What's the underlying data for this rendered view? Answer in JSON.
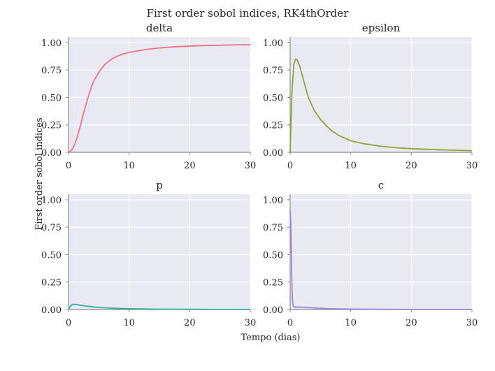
{
  "figure": {
    "title": "First order sobol indices, RK4thOrder",
    "xlabel": "Tempo (dias)",
    "ylabel": "First order sobol indices"
  },
  "colors": {
    "panel_bg": "#e9e9f1",
    "grid": "#ffffff",
    "axis": "#8c8c8c"
  },
  "chart_data": [
    {
      "type": "line",
      "title": "delta",
      "color": "#f07182",
      "xlim": [
        0,
        30
      ],
      "ylim": [
        0,
        1.05
      ],
      "xticks": [
        0,
        10,
        20,
        30
      ],
      "yticks": [
        0.0,
        0.25,
        0.5,
        0.75,
        1.0
      ],
      "grid": true,
      "x": [
        0,
        0.5,
        1,
        1.5,
        2,
        2.5,
        3,
        3.5,
        4,
        5,
        6,
        7,
        8,
        9,
        10,
        12,
        14,
        16,
        18,
        20,
        22,
        24,
        26,
        28,
        30
      ],
      "y": [
        0.0,
        0.02,
        0.07,
        0.15,
        0.25,
        0.36,
        0.46,
        0.55,
        0.63,
        0.73,
        0.8,
        0.845,
        0.875,
        0.895,
        0.91,
        0.93,
        0.945,
        0.955,
        0.962,
        0.967,
        0.971,
        0.974,
        0.977,
        0.979,
        0.98
      ]
    },
    {
      "type": "line",
      "title": "epsilon",
      "color": "#8fa43a",
      "xlim": [
        0,
        30
      ],
      "ylim": [
        0,
        1.05
      ],
      "xticks": [
        0,
        10,
        20,
        30
      ],
      "yticks": [
        0.0,
        0.25,
        0.5,
        0.75,
        1.0
      ],
      "grid": true,
      "x": [
        0,
        0.3,
        0.6,
        0.9,
        1.2,
        1.6,
        2,
        2.5,
        3,
        4,
        5,
        6,
        7,
        8,
        10,
        12,
        15,
        18,
        20,
        25,
        30
      ],
      "y": [
        0.0,
        0.55,
        0.8,
        0.85,
        0.84,
        0.78,
        0.7,
        0.6,
        0.5,
        0.38,
        0.3,
        0.24,
        0.19,
        0.155,
        0.105,
        0.08,
        0.055,
        0.04,
        0.033,
        0.022,
        0.015
      ]
    },
    {
      "type": "line",
      "title": "p",
      "color": "#33ae9a",
      "xlim": [
        0,
        30
      ],
      "ylim": [
        0,
        1.05
      ],
      "xticks": [
        0,
        10,
        20,
        30
      ],
      "yticks": [
        0.0,
        0.25,
        0.5,
        0.75,
        1.0
      ],
      "grid": true,
      "x": [
        0,
        0.3,
        0.6,
        1,
        1.5,
        2,
        3,
        4,
        5,
        6,
        8,
        10,
        12,
        15,
        20,
        25,
        30
      ],
      "y": [
        0.0,
        0.03,
        0.045,
        0.047,
        0.044,
        0.039,
        0.031,
        0.025,
        0.019,
        0.015,
        0.01,
        0.007,
        0.005,
        0.003,
        0.002,
        0.001,
        0.001
      ]
    },
    {
      "type": "line",
      "title": "c",
      "color": "#9b85e3",
      "xlim": [
        0,
        30
      ],
      "ylim": [
        0,
        1.05
      ],
      "xticks": [
        0,
        10,
        20,
        30
      ],
      "yticks": [
        0.0,
        0.25,
        0.5,
        0.75,
        1.0
      ],
      "grid": true,
      "x": [
        0,
        0.1,
        0.2,
        0.3,
        0.4,
        0.55,
        0.7,
        1,
        1.5,
        2,
        3,
        4,
        5,
        6,
        8,
        10,
        15,
        20,
        25,
        30
      ],
      "y": [
        0.9,
        0.8,
        0.5,
        0.2,
        0.06,
        0.03,
        0.022,
        0.022,
        0.022,
        0.02,
        0.017,
        0.014,
        0.011,
        0.009,
        0.006,
        0.004,
        0.002,
        0.001,
        0.001,
        0.001
      ]
    }
  ]
}
